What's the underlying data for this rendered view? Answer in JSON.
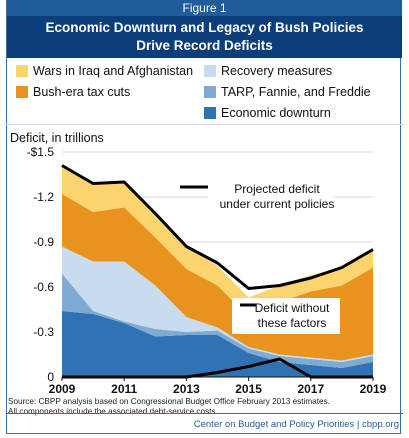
{
  "figure_label": "Figure 1",
  "title_lines": [
    "Economic Downturn and Legacy of Bush Policies",
    "Drive Record Deficits"
  ],
  "colors": {
    "wars": "#fcd46e",
    "tax_cuts": "#e8921f",
    "recovery": "#c8dcee",
    "tarp": "#7faad4",
    "downturn": "#2f73b5",
    "projected_line": "#000000",
    "header": "#0b3e7a"
  },
  "source": [
    "Source: CBPP analysis based on Congressional Budget Office February 2013 estimates.",
    "All components include the associated debt-service costs"
  ],
  "credit": "Center on Budget and Policy Priorities | cbpp.org",
  "chart_data": {
    "type": "area",
    "title": "Economic Downturn and Legacy of Bush Policies Drive Record Deficits",
    "ylabel": "Deficit, in trillions",
    "xlabel": "",
    "x": [
      2009,
      2010,
      2011,
      2012,
      2013,
      2014,
      2015,
      2016,
      2017,
      2018,
      2019
    ],
    "xticks": [
      "2009",
      "2011",
      "2013",
      "2015",
      "2017",
      "2019"
    ],
    "xticks_values": [
      2009,
      2011,
      2013,
      2015,
      2017,
      2019
    ],
    "yticks": [
      "-$1.5",
      "-1.2",
      "-0.9",
      "-0.6",
      "-0.3",
      "0"
    ],
    "yticks_values": [
      1.5,
      1.2,
      0.9,
      0.6,
      0.3,
      0
    ],
    "ylim": [
      0,
      1.5
    ],
    "grid": true,
    "legend_position": "top",
    "series": [
      {
        "name": "Economic downturn",
        "color_key": "downturn",
        "values": [
          0.44,
          0.42,
          0.36,
          0.27,
          0.28,
          0.28,
          0.16,
          0.1,
          0.08,
          0.06,
          0.1
        ]
      },
      {
        "name": "TARP, Fannie, and Freddie",
        "color_key": "tarp",
        "values": [
          0.25,
          0.02,
          0.01,
          0.05,
          0.02,
          0.03,
          0.03,
          0.04,
          0.04,
          0.04,
          0.04
        ]
      },
      {
        "name": "Recovery measures",
        "color_key": "recovery",
        "values": [
          0.18,
          0.33,
          0.4,
          0.29,
          0.1,
          0.02,
          0.01,
          0.01,
          0.01,
          0.01,
          0.01
        ]
      },
      {
        "name": "Bush-era tax cuts",
        "color_key": "tax_cuts",
        "values": [
          0.35,
          0.33,
          0.36,
          0.32,
          0.32,
          0.28,
          0.2,
          0.35,
          0.44,
          0.5,
          0.58
        ]
      },
      {
        "name": "Wars in Iraq and Afghanistan",
        "color_key": "wars",
        "values": [
          0.19,
          0.19,
          0.17,
          0.17,
          0.15,
          0.13,
          0.13,
          0.11,
          0.11,
          0.12,
          0.12
        ]
      }
    ],
    "lines": [
      {
        "name": "Projected deficit under current policies",
        "values": [
          1.41,
          1.29,
          1.3,
          1.09,
          0.87,
          0.76,
          0.59,
          0.61,
          0.66,
          0.73,
          0.85
        ]
      },
      {
        "name": "Deficit without these factors",
        "values": [
          -0.02,
          0.0,
          0.0,
          -0.01,
          0.0,
          0.03,
          0.07,
          0.12,
          -0.02,
          -0.06,
          -0.05
        ]
      }
    ],
    "annotations": [
      {
        "text": [
          "Projected deficit",
          "under current policies"
        ],
        "target": "Projected deficit under current policies",
        "x": 2014.5
      },
      {
        "text": [
          "Deficit without",
          "these factors"
        ],
        "target": "Deficit without these factors",
        "x": 2015.5
      }
    ]
  }
}
